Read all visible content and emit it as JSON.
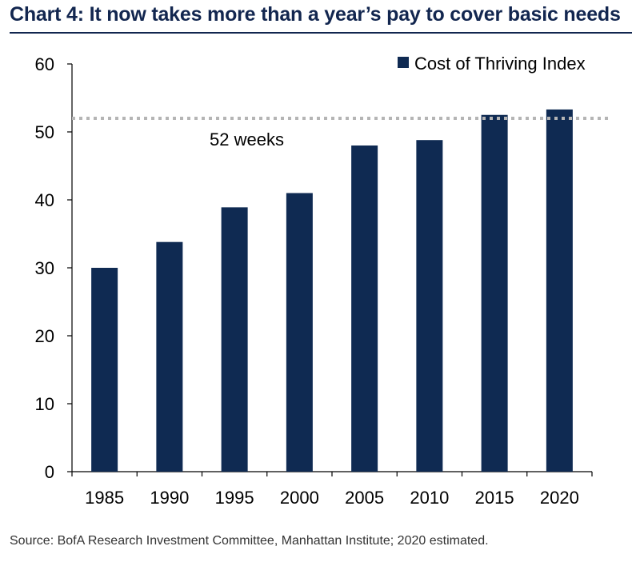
{
  "title": "Chart 4: It now takes more than a year’s pay to cover basic needs",
  "source": "Source: BofA Research Investment Committee, Manhattan Institute; 2020 estimated.",
  "colors": {
    "bar": "#0f2a52",
    "reference_line": "#b5b5b5",
    "title": "#12264f"
  },
  "chart_data": {
    "type": "bar",
    "categories": [
      "1985",
      "1990",
      "1995",
      "2000",
      "2005",
      "2010",
      "2015",
      "2020"
    ],
    "series": [
      {
        "name": "Cost of Thriving Index",
        "values": [
          30,
          33.8,
          38.9,
          41,
          48,
          48.8,
          52.5,
          53.3
        ]
      }
    ],
    "ylim": [
      0,
      60
    ],
    "yticks": [
      0,
      10,
      20,
      30,
      40,
      50,
      60
    ],
    "xlabel": "",
    "ylabel": "",
    "grid": false,
    "legend": "top-right",
    "reference_line": {
      "value": 52,
      "label": "52 weeks",
      "style": "dotted"
    }
  }
}
